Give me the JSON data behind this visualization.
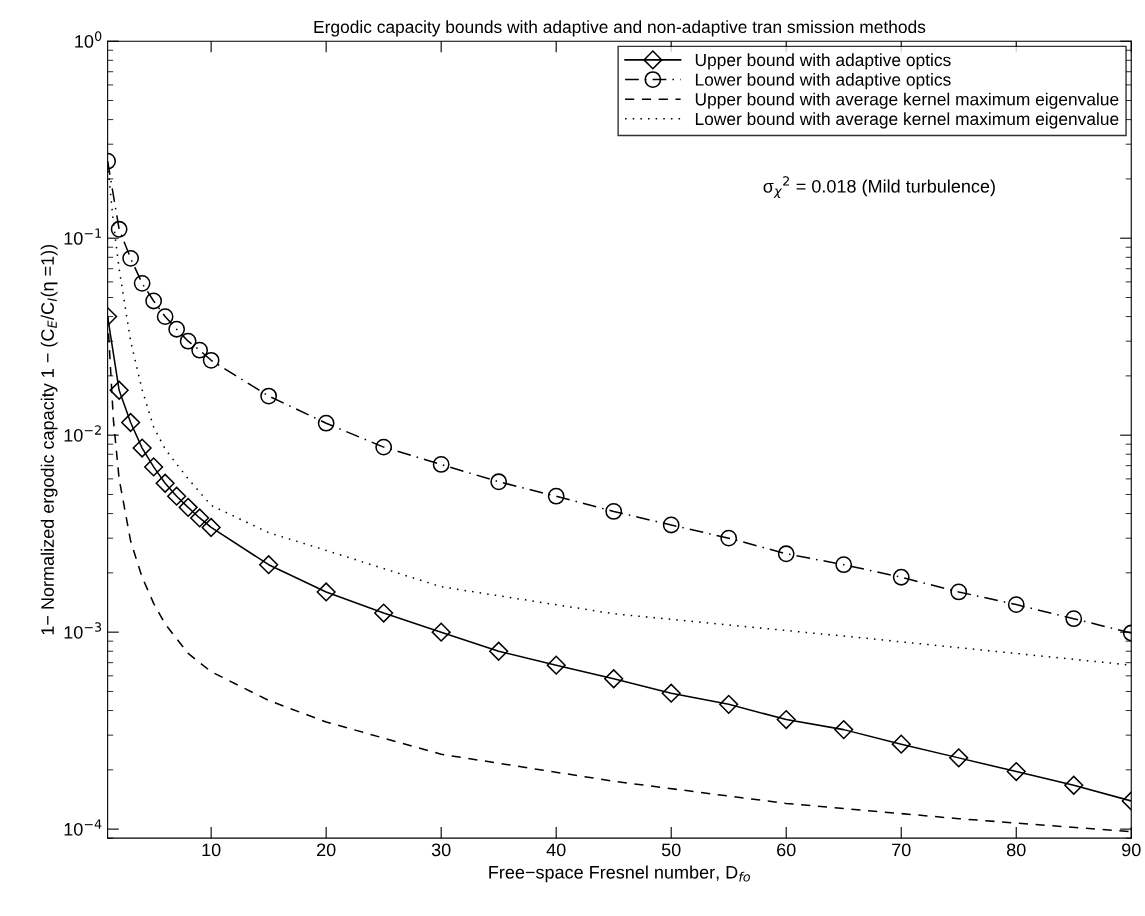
{
  "chart_data": {
    "type": "line",
    "title": "Ergodic capacity bounds with adaptive and non-adaptive tran smission methods",
    "xlabel": "Free−space Fresnel number, D$_{fo}$",
    "ylabel": "1− Normalized ergodic capacity 1 − (C$_{E}$/C$_{I}$(η =1))",
    "log": "y",
    "xlim": [
      1,
      90
    ],
    "ylim": [
      9e-05,
      1
    ],
    "xticks": [
      10,
      20,
      30,
      40,
      50,
      60,
      70,
      80,
      90
    ],
    "yticks": [
      {
        "value": 0.0001,
        "label": "10$^{−4}$"
      },
      {
        "value": 0.001,
        "label": "10$^{−3}$"
      },
      {
        "value": 0.01,
        "label": "10$^{−2}$"
      },
      {
        "value": 0.1,
        "label": "10$^{−1}$"
      },
      {
        "value": 1,
        "label": "10$^{0}$"
      }
    ],
    "grid": false,
    "legend": "top right",
    "annotations": [
      "σ$_{χ}$$^{2}$ = 0.018 (Mild turbulence)"
    ],
    "series": [
      {
        "name": "Upper bound with adaptive optics",
        "color": "#000000",
        "marker": "diamond",
        "line_style": "solid",
        "x": [
          1,
          2,
          3,
          4,
          5,
          6,
          7,
          8,
          9,
          10,
          15,
          20,
          25,
          30,
          35,
          40,
          45,
          50,
          55,
          60,
          65,
          70,
          75,
          80,
          85,
          90
        ],
        "values": [
          0.04,
          0.0169,
          0.0116,
          0.0086,
          0.0069,
          0.0057,
          0.0049,
          0.0043,
          0.0038,
          0.0034,
          0.0022,
          0.0016,
          0.00125,
          0.001,
          0.0008,
          0.00068,
          0.00058,
          0.00049,
          0.00043,
          0.00036,
          0.00032,
          0.00027,
          0.00023,
          0.000196,
          0.000167,
          0.000139
        ]
      },
      {
        "name": "Lower bound with adaptive optics",
        "color": "#000000",
        "marker": "circle",
        "line_style": "dashdot",
        "x": [
          1,
          2,
          3,
          4,
          5,
          6,
          7,
          8,
          9,
          10,
          15,
          20,
          25,
          30,
          35,
          40,
          45,
          50,
          55,
          60,
          65,
          70,
          75,
          80,
          85,
          90
        ],
        "values": [
          0.246,
          0.111,
          0.079,
          0.059,
          0.048,
          0.04,
          0.0345,
          0.03,
          0.027,
          0.024,
          0.0158,
          0.0115,
          0.0087,
          0.0071,
          0.0058,
          0.0049,
          0.0041,
          0.0035,
          0.003,
          0.0025,
          0.0022,
          0.0019,
          0.0016,
          0.00138,
          0.00117,
          0.00099
        ]
      },
      {
        "name": "Upper bound with average kernel maximum eigenvalue",
        "color": "#000000",
        "marker": "none",
        "line_style": "dashed",
        "x": [
          1,
          1.5,
          2,
          3,
          4,
          5,
          6,
          8,
          10,
          15,
          20,
          30,
          45,
          60,
          75,
          90
        ],
        "values": [
          0.04,
          0.012,
          0.006,
          0.0029,
          0.0019,
          0.0014,
          0.0011,
          0.00078,
          0.00063,
          0.00045,
          0.00035,
          0.00024,
          0.000175,
          0.000135,
          0.000113,
          9.7e-05
        ]
      },
      {
        "name": "Lower bound with average kernel maximum eigenvalue",
        "color": "#000000",
        "marker": "none",
        "line_style": "dotted",
        "x": [
          1,
          1.5,
          2,
          3,
          4,
          5,
          6,
          8,
          10,
          15,
          20,
          30,
          45,
          67,
          90
        ],
        "values": [
          0.24,
          0.12,
          0.07,
          0.03,
          0.017,
          0.011,
          0.0085,
          0.006,
          0.0044,
          0.0032,
          0.0026,
          0.0017,
          0.00124,
          0.00093,
          0.00068
        ]
      }
    ]
  }
}
